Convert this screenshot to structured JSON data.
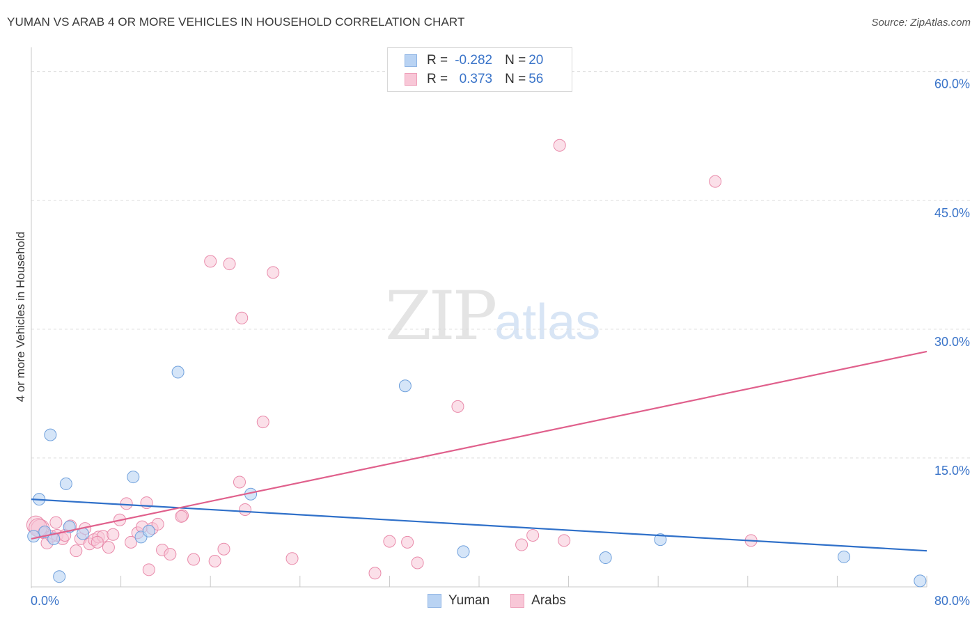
{
  "header": {
    "title": "YUMAN VS ARAB 4 OR MORE VEHICLES IN HOUSEHOLD CORRELATION CHART",
    "source": "Source: ZipAtlas.com"
  },
  "watermark": {
    "zip": "ZIP",
    "atlas": "atlas"
  },
  "legend": {
    "rows": [
      {
        "r_label": "R =",
        "r_value": "-0.282",
        "n_label": "N =",
        "n_value": "20"
      },
      {
        "r_label": "R =",
        "r_value": "0.373",
        "n_label": "N =",
        "n_value": "56"
      }
    ]
  },
  "colors": {
    "yuman_fill": "#b9d3f3",
    "yuman_stroke": "#6fa0dc",
    "yuman_line": "#2f70c9",
    "arab_fill": "#f8c7d7",
    "arab_stroke": "#e98aaa",
    "arab_line": "#e0608c",
    "tick_label": "#3a74c9",
    "grid": "#dcdcdc"
  },
  "chart_data": {
    "type": "scatter",
    "title": "YUMAN VS ARAB 4 OR MORE VEHICLES IN HOUSEHOLD CORRELATION CHART",
    "xlabel": "",
    "ylabel": "4 or more Vehicles in Household",
    "xlim": [
      0,
      80
    ],
    "ylim": [
      0,
      62
    ],
    "x_tick_labels": [
      {
        "value": 0,
        "label": "0.0%"
      },
      {
        "value": 80,
        "label": "80.0%"
      }
    ],
    "y_tick_labels": [
      {
        "value": 15,
        "label": "15.0%"
      },
      {
        "value": 30,
        "label": "30.0%"
      },
      {
        "value": 45,
        "label": "45.0%"
      },
      {
        "value": 60,
        "label": "60.0%"
      }
    ],
    "x_minor_ticks": [
      0,
      8,
      16,
      24,
      32,
      40,
      48,
      56,
      64,
      72,
      80
    ],
    "legend_position": "top-center",
    "series": [
      {
        "name": "Yuman",
        "r": -0.282,
        "n": 20,
        "trend": {
          "x": [
            0,
            80
          ],
          "y": [
            10.2,
            4.2
          ]
        },
        "points": [
          {
            "x": 0.2,
            "y": 5.9
          },
          {
            "x": 0.7,
            "y": 10.2
          },
          {
            "x": 1.2,
            "y": 6.4
          },
          {
            "x": 1.7,
            "y": 17.7
          },
          {
            "x": 2.0,
            "y": 5.6
          },
          {
            "x": 2.5,
            "y": 1.2
          },
          {
            "x": 3.1,
            "y": 12.0
          },
          {
            "x": 3.4,
            "y": 7.0
          },
          {
            "x": 4.6,
            "y": 6.2
          },
          {
            "x": 9.1,
            "y": 12.8
          },
          {
            "x": 9.8,
            "y": 5.8
          },
          {
            "x": 10.5,
            "y": 6.5
          },
          {
            "x": 13.1,
            "y": 25.0
          },
          {
            "x": 19.6,
            "y": 10.8
          },
          {
            "x": 33.4,
            "y": 23.4
          },
          {
            "x": 38.6,
            "y": 4.1
          },
          {
            "x": 51.3,
            "y": 3.4
          },
          {
            "x": 56.2,
            "y": 5.5
          },
          {
            "x": 72.6,
            "y": 3.5
          },
          {
            "x": 79.4,
            "y": 0.7
          }
        ]
      },
      {
        "name": "Arabs",
        "r": 0.373,
        "n": 56,
        "trend": {
          "x": [
            0,
            80
          ],
          "y": [
            5.6,
            27.4
          ]
        },
        "points": [
          {
            "x": 0.4,
            "y": 7.2
          },
          {
            "x": 0.8,
            "y": 6.8
          },
          {
            "x": 1.1,
            "y": 6.3
          },
          {
            "x": 1.4,
            "y": 5.1
          },
          {
            "x": 1.8,
            "y": 5.9
          },
          {
            "x": 2.3,
            "y": 6.0
          },
          {
            "x": 2.8,
            "y": 5.6
          },
          {
            "x": 3.5,
            "y": 7.1
          },
          {
            "x": 4.0,
            "y": 4.2
          },
          {
            "x": 4.4,
            "y": 5.6
          },
          {
            "x": 4.8,
            "y": 6.8
          },
          {
            "x": 5.2,
            "y": 5.0
          },
          {
            "x": 5.6,
            "y": 5.5
          },
          {
            "x": 6.0,
            "y": 5.8
          },
          {
            "x": 6.4,
            "y": 5.9
          },
          {
            "x": 6.9,
            "y": 4.6
          },
          {
            "x": 7.3,
            "y": 6.1
          },
          {
            "x": 7.9,
            "y": 7.8
          },
          {
            "x": 8.5,
            "y": 9.7
          },
          {
            "x": 8.9,
            "y": 5.2
          },
          {
            "x": 9.5,
            "y": 6.3
          },
          {
            "x": 9.9,
            "y": 7.0
          },
          {
            "x": 10.3,
            "y": 9.8
          },
          {
            "x": 10.8,
            "y": 6.8
          },
          {
            "x": 11.3,
            "y": 7.3
          },
          {
            "x": 11.7,
            "y": 4.3
          },
          {
            "x": 12.4,
            "y": 3.8
          },
          {
            "x": 13.5,
            "y": 8.3
          },
          {
            "x": 14.5,
            "y": 3.2
          },
          {
            "x": 16.0,
            "y": 37.9
          },
          {
            "x": 16.4,
            "y": 3.0
          },
          {
            "x": 17.2,
            "y": 4.4
          },
          {
            "x": 17.7,
            "y": 37.6
          },
          {
            "x": 18.6,
            "y": 12.2
          },
          {
            "x": 18.8,
            "y": 31.3
          },
          {
            "x": 19.1,
            "y": 9.0
          },
          {
            "x": 20.7,
            "y": 19.2
          },
          {
            "x": 21.6,
            "y": 36.6
          },
          {
            "x": 23.3,
            "y": 3.3
          },
          {
            "x": 30.7,
            "y": 1.6
          },
          {
            "x": 32.0,
            "y": 5.3
          },
          {
            "x": 33.6,
            "y": 5.2
          },
          {
            "x": 34.5,
            "y": 2.8
          },
          {
            "x": 38.1,
            "y": 21.0
          },
          {
            "x": 43.8,
            "y": 4.9
          },
          {
            "x": 44.8,
            "y": 6.0
          },
          {
            "x": 47.2,
            "y": 51.4
          },
          {
            "x": 47.6,
            "y": 5.4
          },
          {
            "x": 61.1,
            "y": 47.2
          },
          {
            "x": 64.3,
            "y": 5.4
          },
          {
            "x": 10.5,
            "y": 2.0
          },
          {
            "x": 13.4,
            "y": 8.2
          },
          {
            "x": 2.2,
            "y": 7.5
          },
          {
            "x": 0.6,
            "y": 6.9
          },
          {
            "x": 5.9,
            "y": 5.2
          },
          {
            "x": 3.0,
            "y": 6.0
          }
        ]
      }
    ]
  },
  "bottom_legend": {
    "items": [
      "Yuman",
      "Arabs"
    ]
  }
}
